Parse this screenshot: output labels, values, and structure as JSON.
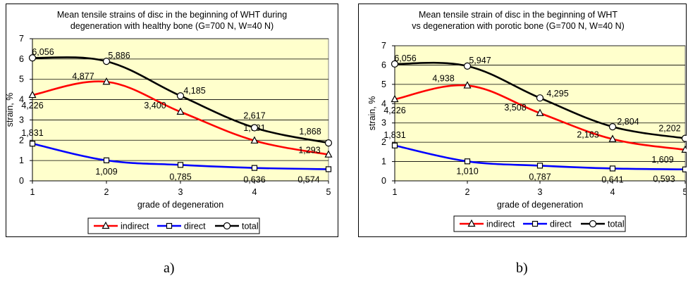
{
  "captions": [
    "a)",
    "b)"
  ],
  "colors": {
    "indirect": "#ff0000",
    "direct": "#0000ff",
    "total": "#000000",
    "plot_bg": "#ffffcc",
    "grid": "#000000",
    "frame": "#808080"
  },
  "chart_data": [
    {
      "type": "line",
      "title": "Mean tensile strains of disc in the beginning of WHT during\ndegeneration with healthy bone (G=700 N, W=40 N)",
      "xlabel": "grade of degeneration",
      "ylabel": "strain, %",
      "x": [
        1,
        2,
        3,
        4,
        5
      ],
      "xlim": [
        1,
        5
      ],
      "ylim": [
        0,
        7
      ],
      "yticks": [
        0,
        1,
        2,
        3,
        4,
        5,
        6,
        7
      ],
      "grid": true,
      "legend": "bottom",
      "series": [
        {
          "name": "indirect",
          "marker": "triangle",
          "values": [
            4.226,
            4.877,
            3.4,
            1.981,
            1.293
          ],
          "labels": [
            "4,226",
            "4,877",
            "3,400",
            "1,981",
            "1,293"
          ]
        },
        {
          "name": "direct",
          "marker": "square",
          "values": [
            1.831,
            1.009,
            0.785,
            0.636,
            0.574
          ],
          "labels": [
            "1,831",
            "1,009",
            "0,785",
            "0,636",
            "0,574"
          ]
        },
        {
          "name": "total",
          "marker": "circle",
          "values": [
            6.056,
            5.886,
            4.185,
            2.617,
            1.868
          ],
          "labels": [
            "6,056",
            "5,886",
            "4,185",
            "2,617",
            "1,868"
          ]
        }
      ]
    },
    {
      "type": "line",
      "title": "Mean tensile strain of disc in the beginning of WHT\nvs degeneration with porotic bone (G=700 N, W=40 N)",
      "xlabel": "grade of degeneration",
      "ylabel": "strain, %",
      "x": [
        1,
        2,
        3,
        4,
        5
      ],
      "xlim": [
        1,
        5
      ],
      "ylim": [
        0,
        7
      ],
      "yticks": [
        0,
        1,
        2,
        3,
        4,
        5,
        6,
        7
      ],
      "grid": true,
      "legend": "bottom",
      "series": [
        {
          "name": "indirect",
          "marker": "triangle",
          "values": [
            4.226,
            4.938,
            3.508,
            2.163,
            1.609
          ],
          "labels": [
            "4,226",
            "4,938",
            "3,508",
            "2,163",
            "1,609"
          ]
        },
        {
          "name": "direct",
          "marker": "square",
          "values": [
            1.831,
            1.01,
            0.787,
            0.641,
            0.593
          ],
          "labels": [
            "1,831",
            "1,010",
            "0,787",
            "0,641",
            "0,593"
          ]
        },
        {
          "name": "total",
          "marker": "circle",
          "values": [
            6.056,
            5.947,
            4.295,
            2.804,
            2.202
          ],
          "labels": [
            "6,056",
            "5,947",
            "4,295",
            "2,804",
            "2,202"
          ]
        }
      ]
    }
  ]
}
